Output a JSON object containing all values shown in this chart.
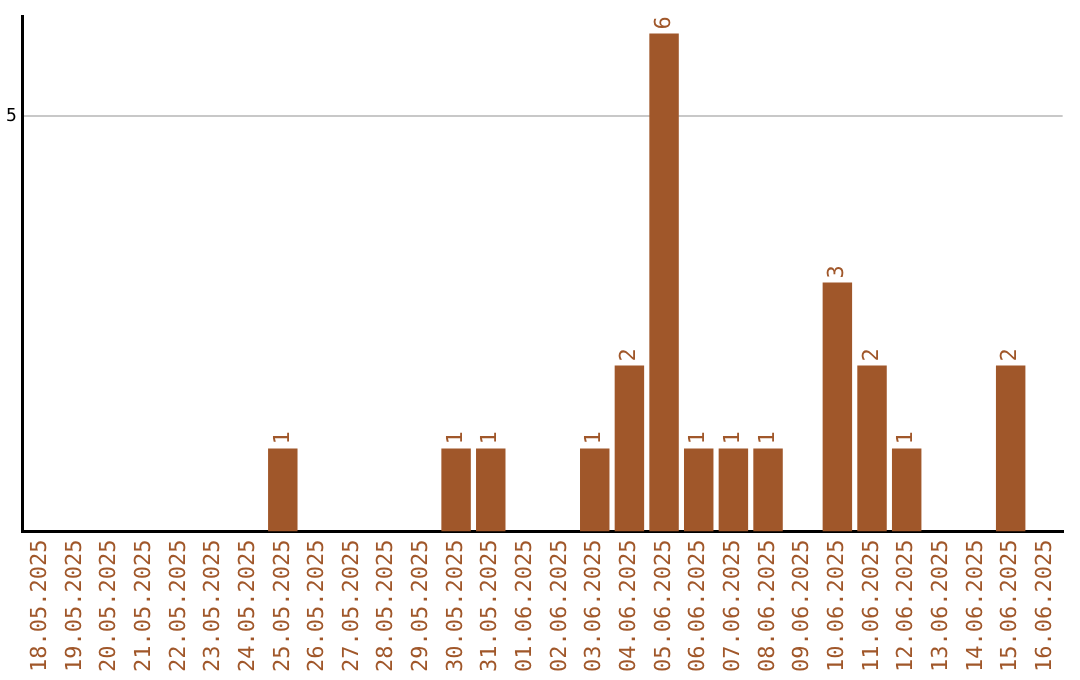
{
  "chart_data": {
    "type": "bar",
    "categories": [
      "18.05.2025",
      "19.05.2025",
      "20.05.2025",
      "21.05.2025",
      "22.05.2025",
      "23.05.2025",
      "24.05.2025",
      "25.05.2025",
      "26.05.2025",
      "27.05.2025",
      "28.05.2025",
      "29.05.2025",
      "30.05.2025",
      "31.05.2025",
      "01.06.2025",
      "02.06.2025",
      "03.06.2025",
      "04.06.2025",
      "05.06.2025",
      "06.06.2025",
      "07.06.2025",
      "08.06.2025",
      "09.06.2025",
      "10.06.2025",
      "11.06.2025",
      "12.06.2025",
      "13.06.2025",
      "14.06.2025",
      "15.06.2025",
      "16.06.2025"
    ],
    "values": [
      0,
      0,
      0,
      0,
      0,
      0,
      0,
      1,
      0,
      0,
      0,
      0,
      1,
      1,
      0,
      0,
      1,
      2,
      6,
      1,
      1,
      1,
      0,
      3,
      2,
      1,
      0,
      0,
      2,
      0
    ],
    "value_labels": [
      null,
      null,
      null,
      null,
      null,
      null,
      null,
      "1",
      null,
      null,
      null,
      null,
      "1",
      "1",
      null,
      null,
      "1",
      "2",
      "6",
      "1",
      "1",
      "1",
      null,
      "3",
      "2",
      "1",
      null,
      null,
      "2",
      null
    ],
    "color": "#a0572a",
    "ylim": [
      0,
      6.2
    ],
    "yticks": [
      5
    ],
    "grid": "y",
    "legend": false
  }
}
